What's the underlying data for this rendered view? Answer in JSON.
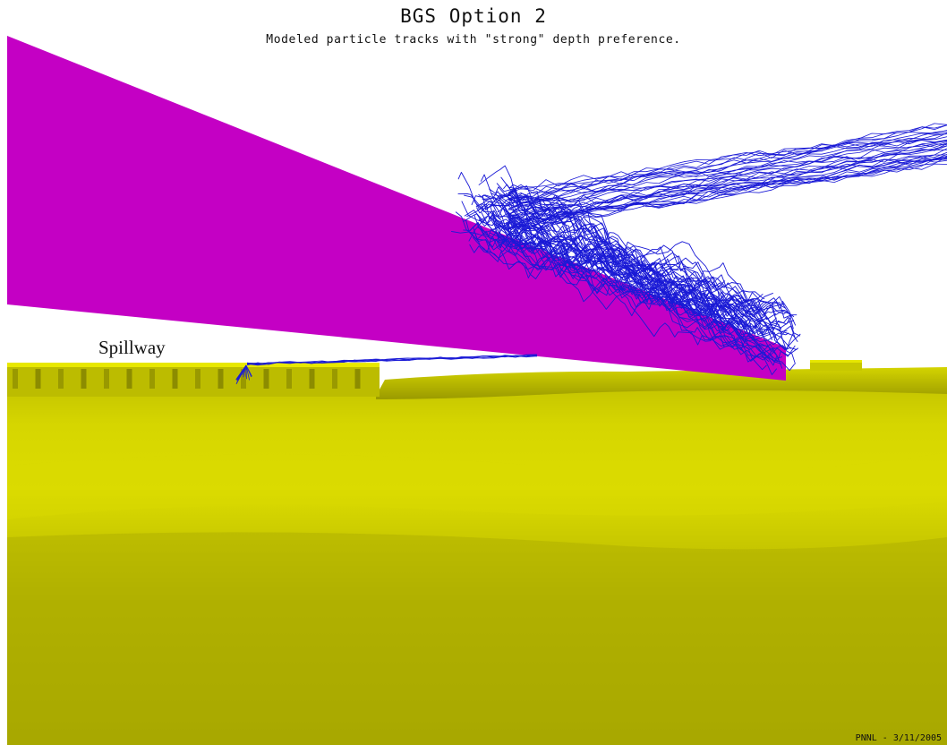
{
  "title": "BGS Option 2",
  "subtitle": "Modeled particle tracks with \"strong\" depth preference.",
  "labels": {
    "spillway": "Spillway"
  },
  "credit": "PNNL - 3/11/2005",
  "colors": {
    "guidance_structure": "#c400c4",
    "particle_tracks": "#1a1ad6",
    "terrain_light": "#e0e000",
    "terrain_dark": "#a9a900",
    "background": "#ffffff"
  }
}
